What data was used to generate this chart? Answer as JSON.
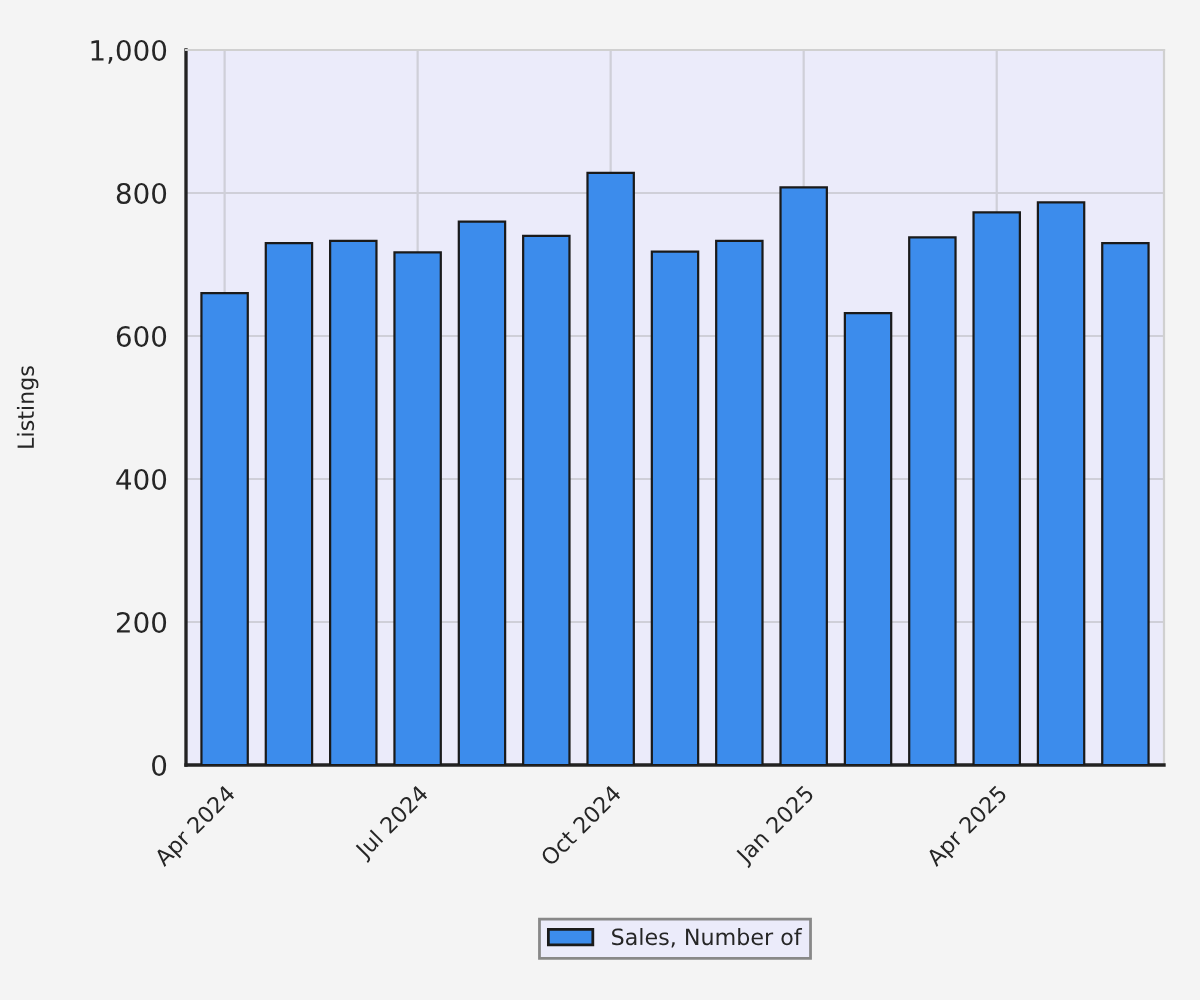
{
  "chart_data": {
    "type": "bar",
    "ylabel": "Listings",
    "categories": [
      "Apr 2024",
      null,
      null,
      "Jul 2024",
      null,
      null,
      "Oct 2024",
      null,
      null,
      "Jan 2025",
      null,
      null,
      "Apr 2025",
      null,
      null
    ],
    "series": [
      {
        "name": "Sales, Number of",
        "color": "#3c8cec",
        "values": [
          660,
          730,
          733,
          717,
          760,
          740,
          828,
          718,
          733,
          808,
          632,
          738,
          773,
          787,
          730
        ]
      }
    ],
    "ylim": [
      0,
      1000
    ],
    "yticks": [
      0,
      200,
      400,
      600,
      800,
      {
        "value": 1000,
        "label": "1,000"
      }
    ],
    "grid": true,
    "legend": "bottom"
  }
}
